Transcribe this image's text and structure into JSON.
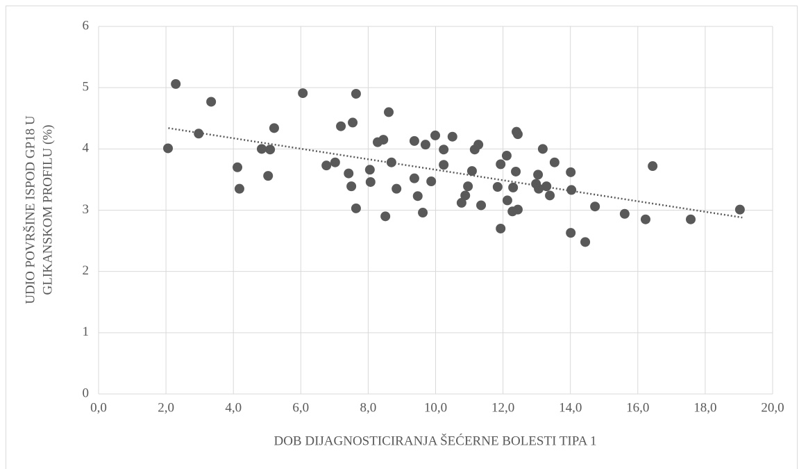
{
  "chart_data": {
    "type": "scatter",
    "xlabel": "DOB DIJAGNOSTICIRANJA ŠEĆERNE BOLESTI TIPA 1",
    "ylabel": [
      "UDIO POVRŠINE ISPOD GP18 U",
      "GLIKANSKOM PROFILU (%)"
    ],
    "xlim": [
      0,
      20
    ],
    "ylim": [
      0,
      6
    ],
    "xticks": [
      {
        "value": 0,
        "label": "0,0"
      },
      {
        "value": 2,
        "label": "2,0"
      },
      {
        "value": 4,
        "label": "4,0"
      },
      {
        "value": 6,
        "label": "6,0"
      },
      {
        "value": 8,
        "label": "8,0"
      },
      {
        "value": 10,
        "label": "10,0"
      },
      {
        "value": 12,
        "label": "12,0"
      },
      {
        "value": 14,
        "label": "14,0"
      },
      {
        "value": 16,
        "label": "16,0"
      },
      {
        "value": 18,
        "label": "18,0"
      },
      {
        "value": 20,
        "label": "20,0"
      }
    ],
    "yticks": [
      0,
      1,
      2,
      3,
      4,
      5,
      6
    ],
    "grid": true,
    "color": "#595959",
    "x": [
      2.06,
      2.29,
      2.97,
      3.34,
      4.12,
      4.18,
      4.84,
      5.03,
      5.09,
      5.21,
      6.06,
      6.76,
      7.02,
      7.19,
      7.42,
      7.5,
      7.54,
      7.64,
      7.64,
      8.05,
      8.07,
      8.28,
      8.45,
      8.51,
      8.61,
      8.69,
      8.84,
      9.37,
      9.37,
      9.47,
      9.62,
      9.7,
      9.87,
      9.99,
      10.24,
      10.24,
      10.5,
      10.77,
      10.88,
      10.96,
      11.08,
      11.16,
      11.27,
      11.35,
      11.84,
      11.93,
      11.93,
      12.11,
      12.13,
      12.28,
      12.3,
      12.38,
      12.4,
      12.44,
      12.44,
      12.98,
      13.04,
      13.06,
      13.18,
      13.29,
      13.39,
      13.53,
      14.01,
      14.01,
      14.03,
      14.44,
      14.73,
      15.61,
      16.23,
      16.44,
      17.57,
      19.03
    ],
    "values": [
      4.01,
      5.06,
      4.25,
      4.77,
      3.7,
      3.35,
      4.0,
      3.56,
      3.99,
      4.34,
      4.91,
      3.73,
      3.78,
      4.37,
      3.6,
      3.39,
      4.43,
      4.9,
      3.03,
      3.66,
      3.46,
      4.11,
      4.15,
      2.9,
      4.6,
      3.78,
      3.35,
      4.13,
      3.52,
      3.23,
      2.96,
      4.07,
      3.47,
      4.22,
      3.99,
      3.74,
      4.2,
      3.12,
      3.24,
      3.39,
      3.64,
      3.99,
      4.07,
      3.08,
      3.38,
      3.75,
      2.7,
      3.89,
      3.16,
      2.98,
      3.37,
      3.63,
      4.28,
      4.24,
      3.01,
      3.43,
      3.58,
      3.35,
      4.0,
      3.39,
      3.24,
      3.78,
      3.62,
      2.63,
      3.33,
      2.48,
      3.06,
      2.94,
      2.85,
      3.72,
      2.85,
      3.01
    ],
    "trendline": {
      "x": [
        2.07,
        19.1
      ],
      "values": [
        4.34,
        2.88
      ]
    }
  }
}
